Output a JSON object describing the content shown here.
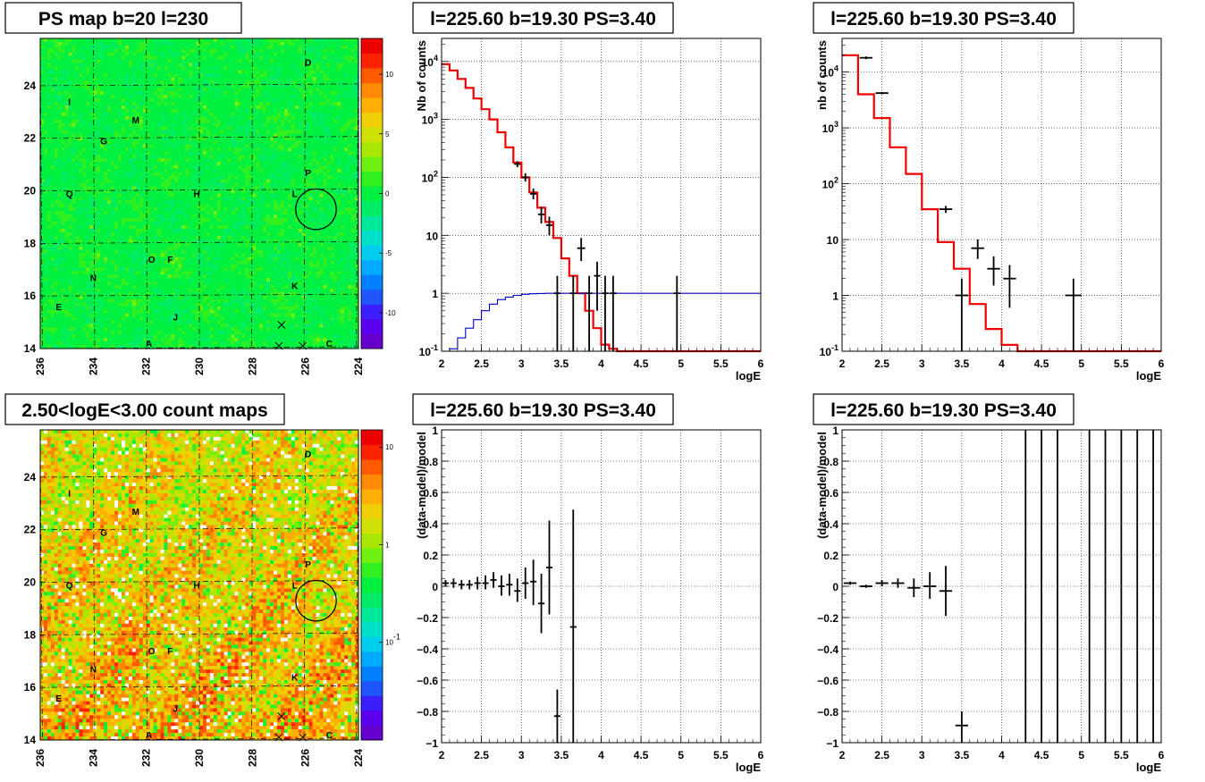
{
  "chart_data": [
    {
      "type": "heatmap",
      "title": "PS map b=20 l=230",
      "x_ticks": [
        "236",
        "234",
        "232",
        "230",
        "228",
        "226",
        "224"
      ],
      "y_ticks": [
        "14",
        "16",
        "18",
        "20",
        "22",
        "24"
      ],
      "x_range": [
        236,
        224
      ],
      "y_range": [
        14,
        25.8
      ],
      "colorbar": {
        "scale": "linear",
        "range": [
          -13,
          13
        ],
        "ticks": [
          "10",
          "5",
          "0",
          "-5",
          "-10"
        ],
        "tick_values": [
          10,
          5,
          0,
          -5,
          -10
        ]
      },
      "labels": [
        {
          "t": "A",
          "x": 231.9,
          "y": 14.2
        },
        {
          "t": "C",
          "x": 225.1,
          "y": 14.2
        },
        {
          "t": "D",
          "x": 225.9,
          "y": 24.9
        },
        {
          "t": "E",
          "x": 235.3,
          "y": 15.6
        },
        {
          "t": "F",
          "x": 231.1,
          "y": 17.4
        },
        {
          "t": "G",
          "x": 233.6,
          "y": 21.9
        },
        {
          "t": "H",
          "x": 230.1,
          "y": 19.9
        },
        {
          "t": "I",
          "x": 234.9,
          "y": 23.4
        },
        {
          "t": "J",
          "x": 230.9,
          "y": 15.2
        },
        {
          "t": "K",
          "x": 226.4,
          "y": 16.4
        },
        {
          "t": "L",
          "x": 226.4,
          "y": 19.9
        },
        {
          "t": "M",
          "x": 232.4,
          "y": 22.7
        },
        {
          "t": "N",
          "x": 234.0,
          "y": 16.7
        },
        {
          "t": "O",
          "x": 231.8,
          "y": 17.4
        },
        {
          "t": "P",
          "x": 225.9,
          "y": 20.7
        },
        {
          "t": "Q",
          "x": 234.9,
          "y": 19.9
        }
      ],
      "markers": [
        {
          "x": 226.9,
          "y": 14.9
        },
        {
          "x": 227.0,
          "y": 14.1
        },
        {
          "x": 226.1,
          "y": 14.1
        }
      ],
      "circle": {
        "x": 225.6,
        "y": 19.3,
        "r": 0.45
      }
    },
    {
      "type": "line",
      "title": "l=225.60 b=19.30 PS=3.40",
      "xlabel": "logE",
      "ylabel": "Nb of counts",
      "xlim": [
        2,
        6
      ],
      "ylim": [
        0.1,
        25000
      ],
      "yscale": "log",
      "x_ticks": [
        "2",
        "2.5",
        "3",
        "3.5",
        "4",
        "4.5",
        "5",
        "5.5",
        "6"
      ],
      "y_ticks": [
        {
          "v": 0.1,
          "label": "10^-1"
        },
        {
          "v": 1,
          "label": "1"
        },
        {
          "v": 10,
          "label": "10"
        },
        {
          "v": 100,
          "label": "10^2"
        },
        {
          "v": 1000,
          "label": "10^3"
        },
        {
          "v": 10000,
          "label": "10^4"
        }
      ],
      "series": [
        {
          "color": "#ee0000",
          "style": "step",
          "edges": [
            2,
            2.1,
            2.2,
            2.3,
            2.4,
            2.5,
            2.6,
            2.7,
            2.8,
            2.9,
            3,
            3.1,
            3.2,
            3.3,
            3.4,
            3.5,
            3.6,
            3.7,
            3.8,
            3.9,
            4,
            4.1,
            4.2,
            4.3,
            6
          ],
          "values": [
            9000,
            7000,
            5000,
            3500,
            2300,
            1500,
            1000,
            600,
            330,
            180,
            100,
            55,
            30,
            17,
            9,
            4,
            2,
            1,
            0.5,
            0.25,
            0.13,
            0.11,
            0.1,
            0.1
          ]
        },
        {
          "color": "#0000cc",
          "style": "step",
          "edges": [
            2,
            2.1,
            2.2,
            2.3,
            2.4,
            2.5,
            2.6,
            2.7,
            2.8,
            2.9,
            3,
            3.1,
            3.2,
            3.3,
            3.4,
            3.5,
            3.6,
            4,
            6
          ],
          "values": [
            0.07,
            0.11,
            0.17,
            0.25,
            0.35,
            0.5,
            0.65,
            0.78,
            0.86,
            0.92,
            0.96,
            0.98,
            0.99,
            1,
            1,
            1,
            1,
            1
          ]
        },
        {
          "color": "#000000",
          "style": "errorbar",
          "points": [
            {
              "x": 2.95,
              "y": 170,
              "xe": 0.04,
              "lo": 150,
              "hi": 190
            },
            {
              "x": 3.05,
              "y": 100,
              "xe": 0.04,
              "lo": 85,
              "hi": 118
            },
            {
              "x": 3.15,
              "y": 52,
              "xe": 0.04,
              "lo": 42,
              "hi": 64
            },
            {
              "x": 3.25,
              "y": 23,
              "xe": 0.04,
              "lo": 16,
              "hi": 31
            },
            {
              "x": 3.35,
              "y": 15,
              "xe": 0.04,
              "lo": 10,
              "hi": 21
            },
            {
              "x": 3.75,
              "y": 6,
              "xe": 0.05,
              "lo": 3.6,
              "hi": 9
            },
            {
              "x": 3.95,
              "y": 2,
              "xe": 0.04,
              "lo": 0.5,
              "hi": 3.5
            },
            {
              "x": 3.45,
              "y": 1,
              "xe": 0.04,
              "lo": 0.1,
              "hi": 2
            },
            {
              "x": 3.65,
              "y": 1,
              "xe": 0.04,
              "lo": 0.1,
              "hi": 2
            },
            {
              "x": 3.85,
              "y": 1,
              "xe": 0.04,
              "lo": 0.1,
              "hi": 2
            },
            {
              "x": 4.05,
              "y": 1,
              "xe": 0.04,
              "lo": 0.1,
              "hi": 2
            },
            {
              "x": 4.15,
              "y": 1,
              "xe": 0.04,
              "lo": 0.1,
              "hi": 2
            },
            {
              "x": 4.95,
              "y": 1,
              "xe": 0.04,
              "lo": 0.1,
              "hi": 2
            }
          ]
        }
      ]
    },
    {
      "type": "line",
      "title": "l=225.60 b=19.30 PS=3.40",
      "xlabel": "logE",
      "ylabel": "nb of counts",
      "xlim": [
        2,
        6
      ],
      "ylim": [
        0.1,
        40000
      ],
      "yscale": "log",
      "x_ticks": [
        "2",
        "2.5",
        "3",
        "3.5",
        "4",
        "4.5",
        "5",
        "5.5",
        "6"
      ],
      "y_ticks": [
        {
          "v": 0.1,
          "label": "10^-1"
        },
        {
          "v": 1,
          "label": "1"
        },
        {
          "v": 10,
          "label": "10"
        },
        {
          "v": 100,
          "label": "10^2"
        },
        {
          "v": 1000,
          "label": "10^3"
        },
        {
          "v": 10000,
          "label": "10^4"
        }
      ],
      "series": [
        {
          "color": "#ee0000",
          "style": "step",
          "edges": [
            2,
            2.2,
            2.4,
            2.6,
            2.8,
            3,
            3.2,
            3.4,
            3.6,
            3.8,
            4,
            4.2,
            4.4,
            6
          ],
          "values": [
            20000,
            4000,
            1500,
            450,
            150,
            35,
            9,
            3,
            0.7,
            0.25,
            0.13,
            0.1,
            0.1
          ]
        },
        {
          "color": "#000000",
          "style": "errorbar",
          "points": [
            {
              "x": 2.3,
              "y": 18000,
              "xe": 0.08,
              "lo": 17000,
              "hi": 19000
            },
            {
              "x": 2.5,
              "y": 4200,
              "xe": 0.08,
              "lo": 4000,
              "hi": 4400
            },
            {
              "x": 3.3,
              "y": 35,
              "xe": 0.08,
              "lo": 30,
              "hi": 40
            },
            {
              "x": 3.5,
              "y": 1,
              "xe": 0.08,
              "lo": 0.1,
              "hi": 2
            },
            {
              "x": 3.7,
              "y": 7,
              "xe": 0.08,
              "lo": 4.5,
              "hi": 10
            },
            {
              "x": 3.9,
              "y": 3,
              "xe": 0.08,
              "lo": 1.5,
              "hi": 5
            },
            {
              "x": 4.1,
              "y": 2,
              "xe": 0.08,
              "lo": 0.6,
              "hi": 3.5
            },
            {
              "x": 4.9,
              "y": 1,
              "xe": 0.1,
              "lo": 0.1,
              "hi": 2
            }
          ]
        }
      ]
    },
    {
      "type": "heatmap",
      "title": "2.50<logE<3.00 count maps",
      "x_ticks": [
        "236",
        "234",
        "232",
        "230",
        "228",
        "226",
        "224"
      ],
      "y_ticks": [
        "14",
        "16",
        "18",
        "20",
        "22",
        "24"
      ],
      "x_range": [
        236,
        224
      ],
      "y_range": [
        14,
        25.8
      ],
      "colorbar": {
        "scale": "log",
        "range": [
          0.01,
          15
        ],
        "ticks": [
          "10",
          "1",
          "10^-1"
        ],
        "tick_values": [
          10,
          1,
          0.1
        ]
      },
      "labels": [
        {
          "t": "A",
          "x": 231.9,
          "y": 14.2
        },
        {
          "t": "C",
          "x": 225.1,
          "y": 14.2
        },
        {
          "t": "D",
          "x": 225.9,
          "y": 24.9
        },
        {
          "t": "E",
          "x": 235.3,
          "y": 15.6
        },
        {
          "t": "F",
          "x": 231.1,
          "y": 17.4
        },
        {
          "t": "G",
          "x": 233.6,
          "y": 21.9
        },
        {
          "t": "H",
          "x": 230.1,
          "y": 19.9
        },
        {
          "t": "I",
          "x": 234.9,
          "y": 23.4
        },
        {
          "t": "J",
          "x": 230.9,
          "y": 15.2
        },
        {
          "t": "K",
          "x": 226.4,
          "y": 16.4
        },
        {
          "t": "L",
          "x": 226.4,
          "y": 19.9
        },
        {
          "t": "M",
          "x": 232.4,
          "y": 22.7
        },
        {
          "t": "N",
          "x": 234.0,
          "y": 16.7
        },
        {
          "t": "O",
          "x": 231.8,
          "y": 17.4
        },
        {
          "t": "P",
          "x": 225.9,
          "y": 20.7
        },
        {
          "t": "Q",
          "x": 234.9,
          "y": 19.9
        }
      ],
      "markers": [
        {
          "x": 226.9,
          "y": 14.9
        },
        {
          "x": 227.0,
          "y": 14.1
        },
        {
          "x": 226.1,
          "y": 14.1
        }
      ],
      "circle": {
        "x": 225.6,
        "y": 19.3,
        "r": 0.45
      }
    },
    {
      "type": "scatter",
      "title": "l=225.60 b=19.30 PS=3.40",
      "xlabel": "logE",
      "ylabel": "(data-model)/model",
      "xlim": [
        2,
        6
      ],
      "ylim": [
        -1,
        1
      ],
      "yscale": "linear",
      "x_ticks": [
        "2",
        "2.5",
        "3",
        "3.5",
        "4",
        "4.5",
        "5",
        "5.5",
        "6"
      ],
      "y_ticks": [
        {
          "v": -1,
          "label": "−1"
        },
        {
          "v": -0.8,
          "label": "−0.8"
        },
        {
          "v": -0.6,
          "label": "−0.6"
        },
        {
          "v": -0.4,
          "label": "−0.4"
        },
        {
          "v": -0.2,
          "label": "−0.2"
        },
        {
          "v": 0,
          "label": "0"
        },
        {
          "v": 0.2,
          "label": "0.2"
        },
        {
          "v": 0.4,
          "label": "0.4"
        },
        {
          "v": 0.6,
          "label": "0.6"
        },
        {
          "v": 0.8,
          "label": "0.8"
        },
        {
          "v": 1,
          "label": "1"
        }
      ],
      "series": [
        {
          "color": "#000000",
          "style": "errorbar",
          "points": [
            {
              "x": 2.05,
              "y": 0.02,
              "xe": 0.04,
              "lo": 0.0,
              "hi": 0.04
            },
            {
              "x": 2.15,
              "y": 0.02,
              "xe": 0.04,
              "lo": -0.01,
              "hi": 0.05
            },
            {
              "x": 2.25,
              "y": 0.01,
              "xe": 0.04,
              "lo": -0.02,
              "hi": 0.04
            },
            {
              "x": 2.35,
              "y": 0.01,
              "xe": 0.04,
              "lo": -0.02,
              "hi": 0.04
            },
            {
              "x": 2.45,
              "y": 0.02,
              "xe": 0.04,
              "lo": -0.02,
              "hi": 0.06
            },
            {
              "x": 2.55,
              "y": 0.02,
              "xe": 0.04,
              "lo": -0.02,
              "hi": 0.07
            },
            {
              "x": 2.65,
              "y": 0.04,
              "xe": 0.04,
              "lo": -0.01,
              "hi": 0.09
            },
            {
              "x": 2.75,
              "y": 0.0,
              "xe": 0.04,
              "lo": -0.06,
              "hi": 0.07
            },
            {
              "x": 2.85,
              "y": 0.01,
              "xe": 0.04,
              "lo": -0.06,
              "hi": 0.08
            },
            {
              "x": 2.95,
              "y": -0.03,
              "xe": 0.04,
              "lo": -0.1,
              "hi": 0.05
            },
            {
              "x": 3.05,
              "y": 0.02,
              "xe": 0.04,
              "lo": -0.08,
              "hi": 0.12
            },
            {
              "x": 3.15,
              "y": 0.03,
              "xe": 0.04,
              "lo": -0.12,
              "hi": 0.17
            },
            {
              "x": 3.25,
              "y": -0.11,
              "xe": 0.04,
              "lo": -0.3,
              "hi": 0.08
            },
            {
              "x": 3.35,
              "y": 0.12,
              "xe": 0.04,
              "lo": -0.18,
              "hi": 0.42
            },
            {
              "x": 3.45,
              "y": -0.83,
              "xe": 0.04,
              "lo": -1.0,
              "hi": -0.66
            },
            {
              "x": 3.65,
              "y": -0.26,
              "xe": 0.04,
              "lo": -1.0,
              "hi": 0.49
            }
          ]
        }
      ]
    },
    {
      "type": "scatter",
      "title": "l=225.60 b=19.30 PS=3.40",
      "xlabel": "logE",
      "ylabel": "(data-model)/model",
      "xlim": [
        2,
        6
      ],
      "ylim": [
        -1,
        1
      ],
      "yscale": "linear",
      "x_ticks": [
        "2",
        "2.5",
        "3",
        "3.5",
        "4",
        "4.5",
        "5",
        "5.5",
        "6"
      ],
      "y_ticks": [
        {
          "v": -1,
          "label": "−1"
        },
        {
          "v": -0.8,
          "label": "−0.8"
        },
        {
          "v": -0.6,
          "label": "−0.6"
        },
        {
          "v": -0.4,
          "label": "−0.4"
        },
        {
          "v": -0.2,
          "label": "−0.2"
        },
        {
          "v": 0,
          "label": "0"
        },
        {
          "v": 0.2,
          "label": "0.2"
        },
        {
          "v": 0.4,
          "label": "0.4"
        },
        {
          "v": 0.6,
          "label": "0.6"
        },
        {
          "v": 0.8,
          "label": "0.8"
        },
        {
          "v": 1,
          "label": "1"
        }
      ],
      "series": [
        {
          "color": "#000000",
          "style": "errorbar",
          "points": [
            {
              "x": 2.1,
              "y": 0.02,
              "xe": 0.08,
              "lo": 0.01,
              "hi": 0.03
            },
            {
              "x": 2.3,
              "y": 0.0,
              "xe": 0.08,
              "lo": -0.01,
              "hi": 0.01
            },
            {
              "x": 2.5,
              "y": 0.02,
              "xe": 0.08,
              "lo": 0.0,
              "hi": 0.04
            },
            {
              "x": 2.7,
              "y": 0.02,
              "xe": 0.08,
              "lo": -0.01,
              "hi": 0.05
            },
            {
              "x": 2.9,
              "y": -0.01,
              "xe": 0.08,
              "lo": -0.07,
              "hi": 0.05
            },
            {
              "x": 3.1,
              "y": 0.0,
              "xe": 0.08,
              "lo": -0.08,
              "hi": 0.09
            },
            {
              "x": 3.3,
              "y": -0.03,
              "xe": 0.08,
              "lo": -0.19,
              "hi": 0.13
            },
            {
              "x": 3.5,
              "y": -0.89,
              "xe": 0.08,
              "lo": -1.0,
              "hi": -0.8
            },
            {
              "x": 4.3,
              "y": 0,
              "xe": 0,
              "lo": -1.0,
              "hi": 1.0
            },
            {
              "x": 4.5,
              "y": 0,
              "xe": 0,
              "lo": -1.0,
              "hi": 1.0
            },
            {
              "x": 4.7,
              "y": 0,
              "xe": 0,
              "lo": -1.0,
              "hi": 1.0
            },
            {
              "x": 5.1,
              "y": 0,
              "xe": 0,
              "lo": -1.0,
              "hi": 1.0
            },
            {
              "x": 5.3,
              "y": 0,
              "xe": 0,
              "lo": -1.0,
              "hi": 1.0
            },
            {
              "x": 5.5,
              "y": 0,
              "xe": 0,
              "lo": -1.0,
              "hi": 1.0
            },
            {
              "x": 5.7,
              "y": 0,
              "xe": 0,
              "lo": -1.0,
              "hi": 1.0
            },
            {
              "x": 5.9,
              "y": 0,
              "xe": 0,
              "lo": -1.0,
              "hi": 1.0
            }
          ]
        }
      ]
    }
  ]
}
